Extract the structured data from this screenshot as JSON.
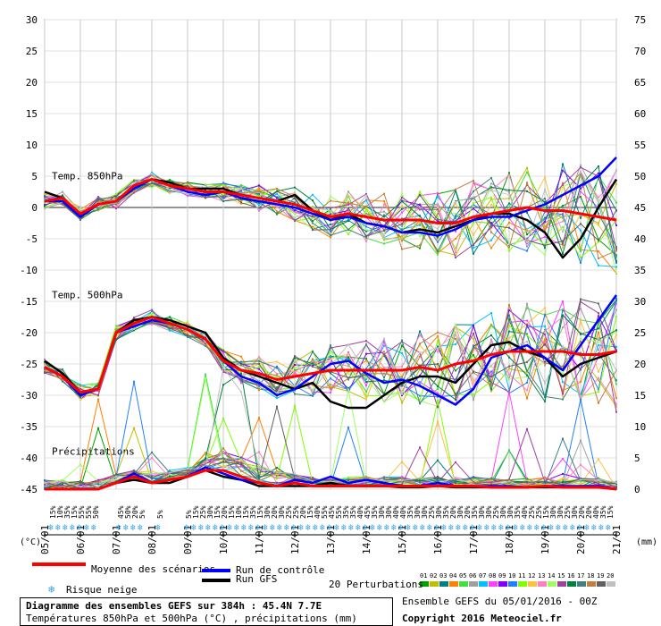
{
  "chart_data": {
    "type": "line",
    "title": "Diagramme des ensembles GEFS sur 384h : 45.4N 7.7E",
    "subtitle": "Températures 850hPa et 500hPa (°C) , précipitations (mm)",
    "panel_labels": [
      "Temp. 850hPa",
      "Temp. 500hPa",
      "Précipitations"
    ],
    "x_ticks": [
      "05/01",
      "06/01",
      "07/01",
      "08/01",
      "09/01",
      "10/01",
      "11/01",
      "12/01",
      "13/01",
      "14/01",
      "15/01",
      "16/01",
      "17/01",
      "18/01",
      "19/01",
      "20/01",
      "21/01"
    ],
    "y_left_ticks": [
      30,
      25,
      20,
      15,
      10,
      5,
      0,
      -5,
      -10,
      -15,
      -20,
      -25,
      -30,
      -35,
      -40,
      -45
    ],
    "y_right_ticks": [
      75,
      70,
      65,
      60,
      55,
      50,
      45,
      40,
      35,
      30,
      25,
      20,
      15,
      10,
      5,
      0
    ],
    "y_left_unit": "(°C)",
    "y_right_unit": "(mm)",
    "ylim_left": [
      -45,
      30
    ],
    "ylim_right": [
      0,
      75
    ],
    "t850": {
      "x_days": [
        0,
        0.5,
        1,
        1.5,
        2,
        2.5,
        3,
        3.5,
        4,
        4.5,
        5,
        5.5,
        6,
        6.5,
        7,
        7.5,
        8,
        8.5,
        9,
        9.5,
        10,
        10.5,
        11,
        11.5,
        12,
        12.5,
        13,
        13.5,
        14,
        14.5,
        15,
        15.5,
        16
      ],
      "mean": [
        1,
        1.5,
        -1,
        0.5,
        1,
        3.5,
        4.5,
        3.5,
        3,
        2.5,
        2.5,
        2,
        1.5,
        1,
        0.5,
        -0.5,
        -1.5,
        -1,
        -1.5,
        -2,
        -2,
        -2,
        -2.5,
        -2.5,
        -1.5,
        -1,
        -0.5,
        0,
        -0.5,
        -0.5,
        -1,
        -1.5,
        -2
      ],
      "control": [
        1,
        1,
        -1.5,
        0.5,
        1,
        3,
        4.5,
        3.5,
        2.5,
        2,
        2.5,
        1.5,
        1,
        0.5,
        0,
        -1,
        -2,
        -1.5,
        -2.5,
        -3,
        -4,
        -4,
        -4.5,
        -3.5,
        -2,
        -1.5,
        -1.5,
        -0.5,
        0.5,
        2,
        3.5,
        5,
        8
      ],
      "gfs": [
        2.5,
        1.5,
        -1.5,
        0.5,
        1,
        3.5,
        4.5,
        4,
        3,
        3,
        3,
        2,
        1.5,
        1,
        2,
        -0.5,
        -2,
        -1,
        -2.5,
        -3,
        -4,
        -3.5,
        -4,
        -3,
        -2,
        -1,
        -1,
        -2,
        -4,
        -8,
        -5,
        0,
        4.5
      ]
    },
    "t500": {
      "x_days": [
        0,
        0.5,
        1,
        1.5,
        2,
        2.5,
        3,
        3.5,
        4,
        4.5,
        5,
        5.5,
        6,
        6.5,
        7,
        7.5,
        8,
        8.5,
        9,
        9.5,
        10,
        10.5,
        11,
        11.5,
        12,
        12.5,
        13,
        13.5,
        14,
        14.5,
        15,
        15.5,
        16
      ],
      "mean": [
        -25.5,
        -27,
        -29.5,
        -29,
        -20,
        -18.5,
        -17.5,
        -18.5,
        -19.5,
        -21,
        -24.5,
        -26,
        -26.5,
        -27.5,
        -27,
        -26.5,
        -26,
        -26,
        -26,
        -26,
        -26,
        -25.5,
        -26,
        -25,
        -24.5,
        -23.5,
        -23,
        -23,
        -23,
        -23,
        -23.5,
        -23.5,
        -23
      ],
      "control": [
        -25.5,
        -27,
        -30,
        -29,
        -20,
        -19,
        -18,
        -18.5,
        -19.5,
        -21,
        -24.5,
        -27,
        -28,
        -30,
        -29,
        -27,
        -25,
        -24.5,
        -26.5,
        -28,
        -27.5,
        -28.5,
        -30,
        -31.5,
        -29,
        -24,
        -23,
        -22,
        -24,
        -26,
        -22,
        -18,
        -14
      ],
      "gfs": [
        -24.5,
        -26.5,
        -29.5,
        -29,
        -20,
        -18,
        -17.5,
        -18,
        -19,
        -20,
        -24,
        -26,
        -27,
        -28,
        -29,
        -28,
        -31,
        -32,
        -32,
        -30,
        -28,
        -27,
        -27,
        -28,
        -25,
        -22,
        -21.5,
        -23,
        -24,
        -27,
        -25,
        -24,
        -23
      ]
    },
    "precip_mm": {
      "x_days": [
        0,
        0.5,
        1,
        1.5,
        2,
        2.5,
        3,
        3.5,
        4,
        4.5,
        5,
        5.5,
        6,
        6.5,
        7,
        7.5,
        8,
        8.5,
        9,
        9.5,
        10,
        10.5,
        11,
        11.5,
        12,
        12.5,
        13,
        13.5,
        14,
        14.5,
        15,
        15.5,
        16
      ],
      "mean": [
        0,
        0,
        0,
        0,
        1,
        2,
        1,
        1.5,
        2,
        3,
        3,
        2,
        1,
        0.5,
        1,
        0.5,
        0.5,
        0.5,
        0.5,
        0.5,
        0.5,
        0.5,
        0.5,
        0.5,
        0.5,
        0.3,
        0.3,
        0.3,
        0.5,
        0.3,
        0.3,
        0.3,
        0
      ],
      "control": [
        0,
        0,
        0,
        0,
        1,
        2.5,
        1,
        1.5,
        2,
        3.5,
        2.5,
        1.5,
        1,
        0.5,
        1.5,
        1,
        2,
        1,
        1.5,
        1,
        0.5,
        0.5,
        1,
        0.5,
        0.5,
        0.5,
        0.5,
        0.3,
        0.5,
        0.5,
        0.5,
        0.5,
        0
      ],
      "gfs": [
        0,
        0,
        0,
        0,
        1,
        1.5,
        1,
        1,
        2,
        3,
        2,
        1.5,
        0.5,
        0.5,
        0.5,
        0.5,
        1,
        0.5,
        0.5,
        0.5,
        0.3,
        0.3,
        0.5,
        0.3,
        0.3,
        0.3,
        0.3,
        0.3,
        0.3,
        0.3,
        0.3,
        0.3,
        0
      ]
    },
    "snow_risk": [
      {
        "day": 0.2,
        "pct": "15%"
      },
      {
        "day": 0.4,
        "pct": "10%"
      },
      {
        "day": 0.6,
        "pct": "35%"
      },
      {
        "day": 0.8,
        "pct": "15%"
      },
      {
        "day": 1.0,
        "pct": "55%"
      },
      {
        "day": 1.2,
        "pct": "55%"
      },
      {
        "day": 1.4,
        "pct": "50%"
      },
      {
        "day": 2.1,
        "pct": "45%"
      },
      {
        "day": 2.3,
        "pct": "50%"
      },
      {
        "day": 2.5,
        "pct": "20%"
      },
      {
        "day": 2.7,
        "pct": "5%"
      },
      {
        "day": 3.2,
        "pct": "5%"
      },
      {
        "day": 4.0,
        "pct": "5%"
      },
      {
        "day": 4.2,
        "pct": "15%"
      },
      {
        "day": 4.4,
        "pct": "25%"
      },
      {
        "day": 4.6,
        "pct": "30%"
      },
      {
        "day": 4.8,
        "pct": "15%"
      },
      {
        "day": 5.0,
        "pct": "20%"
      },
      {
        "day": 5.2,
        "pct": "15%"
      },
      {
        "day": 5.4,
        "pct": "10%"
      },
      {
        "day": 5.6,
        "pct": "15%"
      },
      {
        "day": 5.8,
        "pct": "35%"
      },
      {
        "day": 6.0,
        "pct": "15%"
      },
      {
        "day": 6.2,
        "pct": "30%"
      },
      {
        "day": 6.4,
        "pct": "20%"
      },
      {
        "day": 6.6,
        "pct": "30%"
      },
      {
        "day": 6.8,
        "pct": "25%"
      },
      {
        "day": 7.0,
        "pct": "25%"
      },
      {
        "day": 7.2,
        "pct": "20%"
      },
      {
        "day": 7.4,
        "pct": "15%"
      },
      {
        "day": 7.6,
        "pct": "40%"
      },
      {
        "day": 7.8,
        "pct": "55%"
      },
      {
        "day": 8.0,
        "pct": "45%"
      },
      {
        "day": 8.2,
        "pct": "55%"
      },
      {
        "day": 8.4,
        "pct": "35%"
      },
      {
        "day": 8.6,
        "pct": "35%"
      },
      {
        "day": 8.8,
        "pct": "40%"
      },
      {
        "day": 9.0,
        "pct": "45%"
      },
      {
        "day": 9.2,
        "pct": "35%"
      },
      {
        "day": 9.4,
        "pct": "30%"
      },
      {
        "day": 9.6,
        "pct": "30%"
      },
      {
        "day": 9.8,
        "pct": "40%"
      },
      {
        "day": 10.0,
        "pct": "40%"
      },
      {
        "day": 10.2,
        "pct": "35%"
      },
      {
        "day": 10.4,
        "pct": "30%"
      },
      {
        "day": 10.6,
        "pct": "30%"
      },
      {
        "day": 10.8,
        "pct": "25%"
      },
      {
        "day": 11.0,
        "pct": "30%"
      },
      {
        "day": 11.2,
        "pct": "35%"
      },
      {
        "day": 11.4,
        "pct": "20%"
      },
      {
        "day": 11.6,
        "pct": "30%"
      },
      {
        "day": 11.8,
        "pct": "20%"
      },
      {
        "day": 12.0,
        "pct": "35%"
      },
      {
        "day": 12.2,
        "pct": "30%"
      },
      {
        "day": 12.4,
        "pct": "30%"
      },
      {
        "day": 12.6,
        "pct": "25%"
      },
      {
        "day": 12.8,
        "pct": "30%"
      },
      {
        "day": 13.0,
        "pct": "30%"
      },
      {
        "day": 13.2,
        "pct": "35%"
      },
      {
        "day": 13.4,
        "pct": "40%"
      },
      {
        "day": 13.6,
        "pct": "25%"
      },
      {
        "day": 13.8,
        "pct": "25%"
      },
      {
        "day": 14.0,
        "pct": "15%"
      },
      {
        "day": 14.2,
        "pct": "30%"
      },
      {
        "day": 14.4,
        "pct": "30%"
      },
      {
        "day": 14.6,
        "pct": "25%"
      },
      {
        "day": 14.8,
        "pct": "30%"
      },
      {
        "day": 15.0,
        "pct": "20%"
      },
      {
        "day": 15.2,
        "pct": "20%"
      },
      {
        "day": 15.4,
        "pct": "40%"
      },
      {
        "day": 15.6,
        "pct": "35%"
      },
      {
        "day": 15.8,
        "pct": "15%"
      }
    ]
  },
  "legend": {
    "mean_label": "Moyenne des scénarios",
    "control_label": "Run de contrôle",
    "gfs_label": "Run GFS",
    "snow_label": "Risque neige",
    "perturbations_label": "20 Perturbations",
    "member_numbers": [
      "01",
      "02",
      "03",
      "04",
      "05",
      "06",
      "07",
      "08",
      "09",
      "10",
      "11",
      "12",
      "13",
      "14",
      "15",
      "16",
      "17",
      "18",
      "19",
      "20"
    ]
  },
  "colors": {
    "mean": "#ff0000",
    "control": "#0000ff",
    "gfs": "#000000",
    "members": [
      "#00a000",
      "#c0c000",
      "#008080",
      "#ff8000",
      "#40e040",
      "#a0a0a0",
      "#00c0ff",
      "#ff40ff",
      "#8000ff",
      "#2080ff",
      "#80ff00",
      "#ffc040",
      "#ff80c0",
      "#a0ff60",
      "#a040a0",
      "#008040",
      "#408080",
      "#c08040",
      "#606060",
      "#c0c0c0"
    ]
  },
  "info": {
    "line1": "Diagramme des ensembles GEFS sur 384h : 45.4N 7.7E",
    "line2": "Températures 850hPa et 500hPa (°C) , précipitations (mm)",
    "ensemble_run": "Ensemble GEFS du 05/01/2016 - 00Z",
    "copyright": "Copyright 2016 Meteociel.fr"
  }
}
